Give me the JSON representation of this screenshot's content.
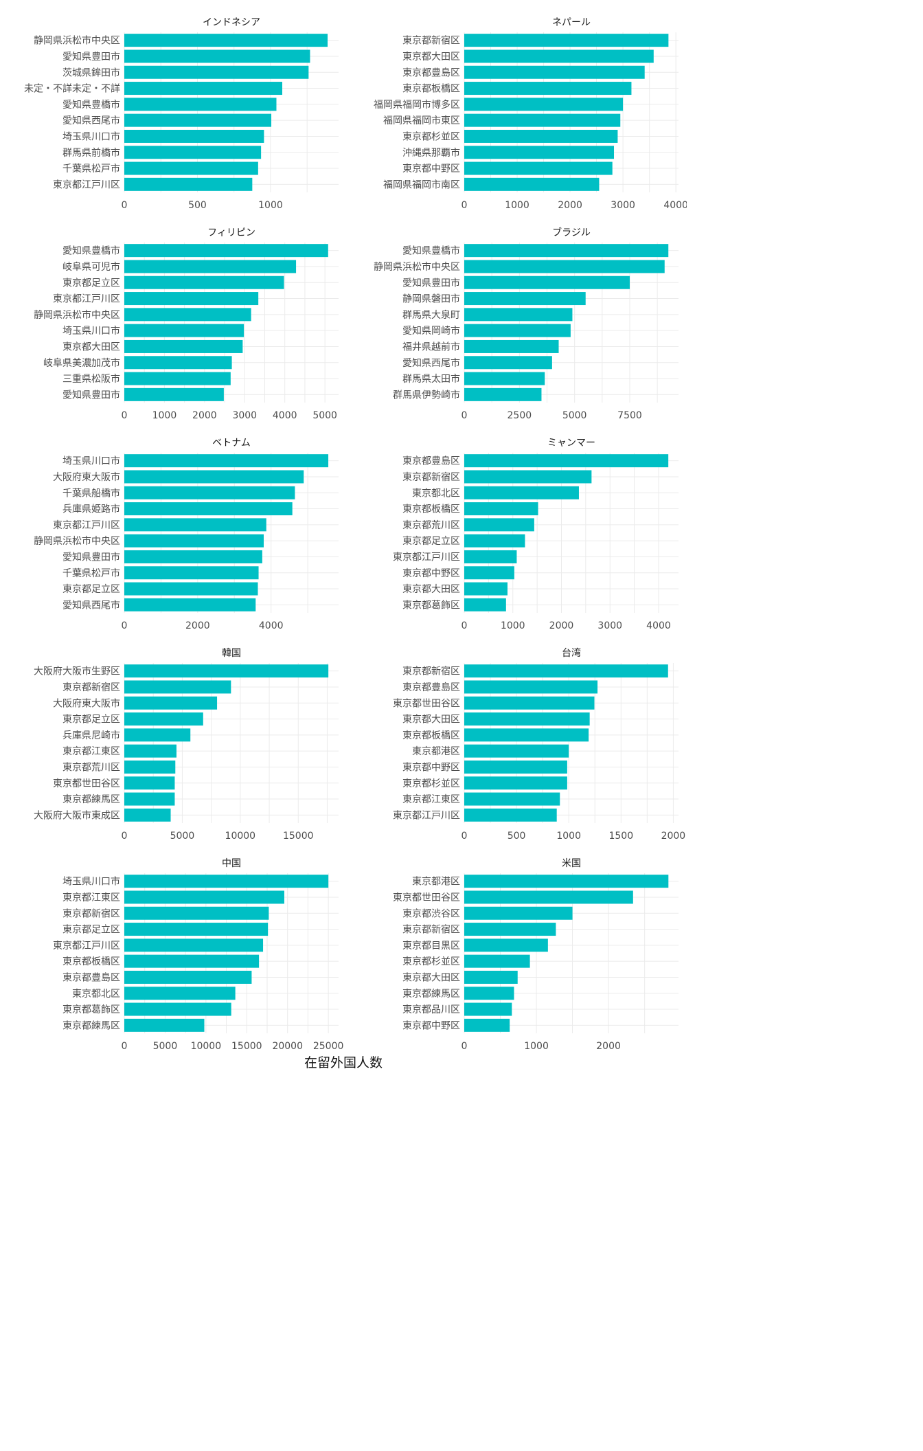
{
  "figure": {
    "x_axis_title": "在留外国人数",
    "bar_color": "#00BFC4",
    "grid_color": "#EBEBEB",
    "text_color": "#4D4D4D"
  },
  "chart_data": [
    {
      "type": "bar",
      "orientation": "horizontal",
      "title": "インドネシア",
      "categories": [
        "静岡県浜松市中央区",
        "愛知県豊田市",
        "茨城県鉾田市",
        "未定・不詳未定・不詳",
        "愛知県豊橋市",
        "愛知県西尾市",
        "埼玉県川口市",
        "群馬県前橋市",
        "千葉県松戸市",
        "東京都江戸川区"
      ],
      "values": [
        1390,
        1270,
        1260,
        1080,
        1040,
        1005,
        955,
        935,
        915,
        875
      ],
      "xlim": [
        0,
        1465
      ],
      "xticks": [
        0,
        500,
        1000
      ]
    },
    {
      "type": "bar",
      "orientation": "horizontal",
      "title": "ネパール",
      "categories": [
        "東京都新宿区",
        "東京都大田区",
        "東京都豊島区",
        "東京都板橋区",
        "福岡県福岡市博多区",
        "福岡県福岡市東区",
        "東京都杉並区",
        "沖縄県那覇市",
        "東京都中野区",
        "福岡県福岡市南区"
      ],
      "values": [
        3860,
        3580,
        3410,
        3160,
        3000,
        2950,
        2900,
        2830,
        2800,
        2550
      ],
      "xlim": [
        0,
        4050
      ],
      "xticks": [
        0,
        1000,
        2000,
        3000,
        4000
      ]
    },
    {
      "type": "bar",
      "orientation": "horizontal",
      "title": "フィリピン",
      "categories": [
        "愛知県豊橋市",
        "岐阜県可児市",
        "東京都足立区",
        "東京都江戸川区",
        "静岡県浜松市中央区",
        "埼玉県川口市",
        "東京都大田区",
        "岐阜県美濃加茂市",
        "三重県松阪市",
        "愛知県豊田市"
      ],
      "values": [
        5080,
        4280,
        3980,
        3340,
        3160,
        2980,
        2950,
        2680,
        2650,
        2480
      ],
      "xlim": [
        0,
        5340
      ],
      "xticks": [
        0,
        1000,
        2000,
        3000,
        4000,
        5000
      ]
    },
    {
      "type": "bar",
      "orientation": "horizontal",
      "title": "ブラジル",
      "categories": [
        "愛知県豊橋市",
        "静岡県浜松市中央区",
        "愛知県豊田市",
        "静岡県磐田市",
        "群馬県大泉町",
        "愛知県岡崎市",
        "福井県越前市",
        "愛知県西尾市",
        "群馬県太田市",
        "群馬県伊勢崎市"
      ],
      "values": [
        9250,
        9080,
        7500,
        5500,
        4900,
        4820,
        4280,
        3980,
        3650,
        3500
      ],
      "xlim": [
        0,
        9710
      ],
      "xticks": [
        0,
        2500,
        5000,
        7500
      ]
    },
    {
      "type": "bar",
      "orientation": "horizontal",
      "title": "ベトナム",
      "categories": [
        "埼玉県川口市",
        "大阪府東大阪市",
        "千葉県船橋市",
        "兵庫県姫路市",
        "東京都江戸川区",
        "静岡県浜松市中央区",
        "愛知県豊田市",
        "千葉県松戸市",
        "東京都足立区",
        "愛知県西尾市"
      ],
      "values": [
        5560,
        4890,
        4650,
        4580,
        3870,
        3800,
        3760,
        3660,
        3640,
        3580
      ],
      "xlim": [
        0,
        5840
      ],
      "xticks": [
        0,
        2000,
        4000
      ]
    },
    {
      "type": "bar",
      "orientation": "horizontal",
      "title": "ミャンマー",
      "categories": [
        "東京都豊島区",
        "東京都新宿区",
        "東京都北区",
        "東京都板橋区",
        "東京都荒川区",
        "東京都足立区",
        "東京都江戸川区",
        "東京都中野区",
        "東京都大田区",
        "東京都葛飾区"
      ],
      "values": [
        4200,
        2620,
        2360,
        1520,
        1440,
        1250,
        1080,
        1030,
        890,
        860
      ],
      "xlim": [
        0,
        4410
      ],
      "xticks": [
        0,
        1000,
        2000,
        3000,
        4000
      ]
    },
    {
      "type": "bar",
      "orientation": "horizontal",
      "title": "韓国",
      "categories": [
        "大阪府大阪市生野区",
        "東京都新宿区",
        "大阪府東大阪市",
        "東京都足立区",
        "兵庫県尼崎市",
        "東京都江東区",
        "東京都荒川区",
        "東京都世田谷区",
        "東京都練馬区",
        "大阪府大阪市東成区"
      ],
      "values": [
        17600,
        9200,
        8000,
        6800,
        5700,
        4500,
        4400,
        4350,
        4350,
        4000
      ],
      "xlim": [
        0,
        18480
      ],
      "xticks": [
        0,
        5000,
        10000,
        15000
      ]
    },
    {
      "type": "bar",
      "orientation": "horizontal",
      "title": "台湾",
      "categories": [
        "東京都新宿区",
        "東京都豊島区",
        "東京都世田谷区",
        "東京都大田区",
        "東京都板橋区",
        "東京都港区",
        "東京都中野区",
        "東京都杉並区",
        "東京都江東区",
        "東京都江戸川区"
      ],
      "values": [
        1950,
        1275,
        1245,
        1200,
        1190,
        1000,
        985,
        985,
        915,
        885
      ],
      "xlim": [
        0,
        2050
      ],
      "xticks": [
        0,
        500,
        1000,
        1500,
        2000
      ]
    },
    {
      "type": "bar",
      "orientation": "horizontal",
      "title": "中国",
      "categories": [
        "埼玉県川口市",
        "東京都江東区",
        "東京都新宿区",
        "東京都足立区",
        "東京都江戸川区",
        "東京都板橋区",
        "東京都豊島区",
        "東京都北区",
        "東京都葛飾区",
        "東京都練馬区"
      ],
      "values": [
        25000,
        19600,
        17700,
        17600,
        17000,
        16500,
        15600,
        13600,
        13100,
        9800
      ],
      "xlim": [
        0,
        26250
      ],
      "xticks": [
        0,
        5000,
        10000,
        15000,
        20000,
        25000
      ]
    },
    {
      "type": "bar",
      "orientation": "horizontal",
      "title": "米国",
      "categories": [
        "東京都港区",
        "東京都世田谷区",
        "東京都渋谷区",
        "東京都新宿区",
        "東京都目黒区",
        "東京都杉並区",
        "東京都大田区",
        "東京都練馬区",
        "東京都品川区",
        "東京都中野区"
      ],
      "values": [
        2830,
        2340,
        1500,
        1270,
        1160,
        910,
        740,
        690,
        660,
        630
      ],
      "xlim": [
        0,
        2970
      ],
      "xticks": [
        0,
        1000,
        2000
      ]
    }
  ]
}
